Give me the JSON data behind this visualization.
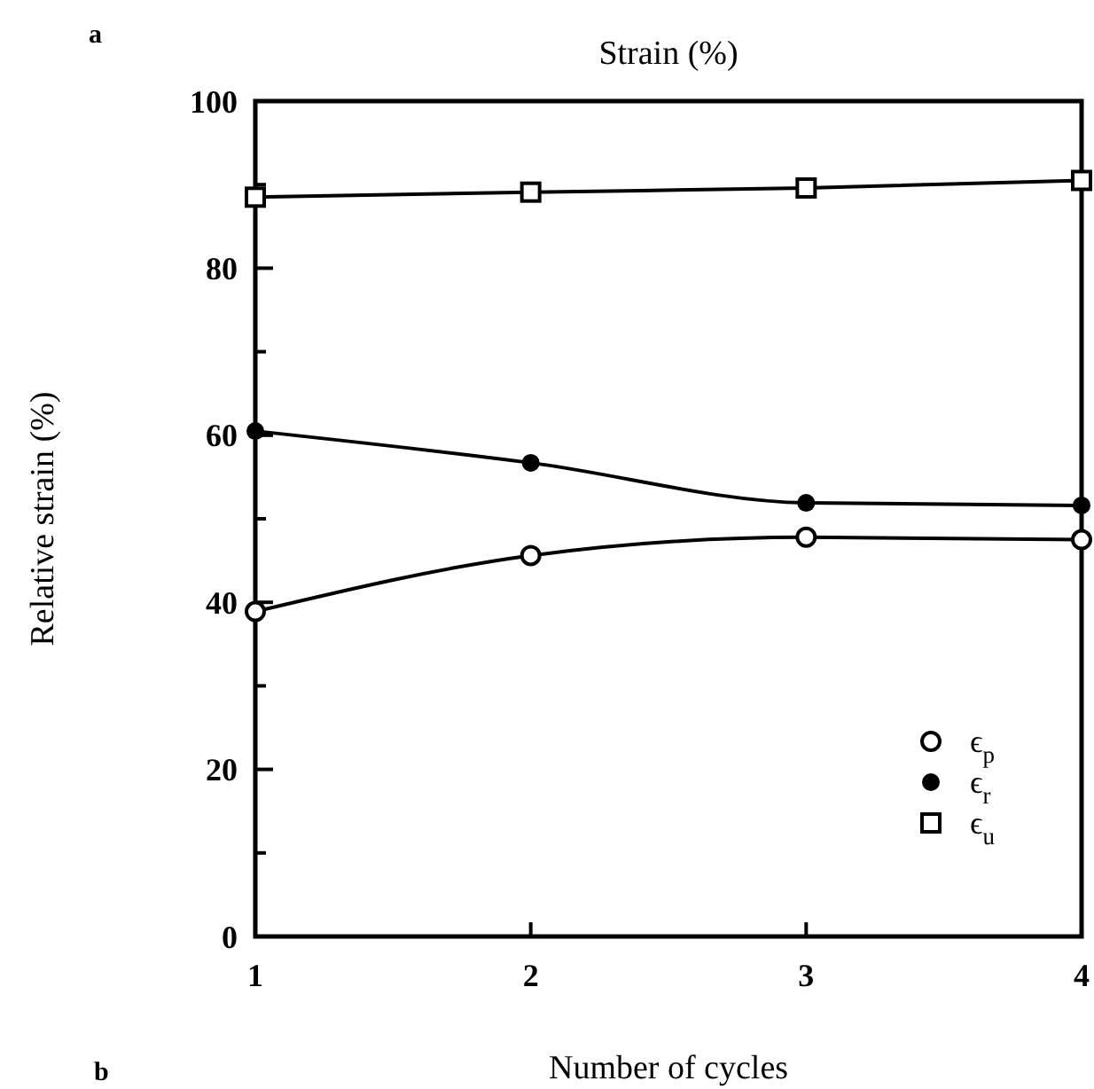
{
  "chart_data": {
    "type": "line",
    "title": "Strain (%)",
    "xlabel": "Number of cycles",
    "ylabel": "Relative strain (%)",
    "annotations": [
      "a",
      "b"
    ],
    "x": [
      1,
      2,
      3,
      4
    ],
    "xlim": [
      1,
      4
    ],
    "xticks": [
      1,
      2,
      3,
      4
    ],
    "ylim": [
      0,
      100
    ],
    "yticks": [
      0,
      {
        "value": 10,
        "label": null
      },
      20,
      {
        "value": 30,
        "label": null
      },
      40,
      {
        "value": 50,
        "label": null
      },
      60,
      {
        "value": 70,
        "label": null
      },
      80,
      {
        "value": 90,
        "label": null
      },
      100
    ],
    "legend": "bottom right",
    "grid": false,
    "line_style": "solid",
    "series": [
      {
        "name": "ϵ$_{p}$",
        "color": "#000000",
        "marker": "circle-open",
        "values": [
          38.9,
          45.6,
          47.8,
          47.5
        ]
      },
      {
        "name": "ϵ$_{r}$",
        "color": "#000000",
        "marker": "circle",
        "values": [
          60.5,
          56.7,
          51.9,
          51.6
        ]
      },
      {
        "name": "ϵ$_{u}$",
        "color": "#000000",
        "marker": "square-open",
        "values": [
          88.5,
          89.1,
          89.6,
          90.5
        ]
      }
    ]
  }
}
